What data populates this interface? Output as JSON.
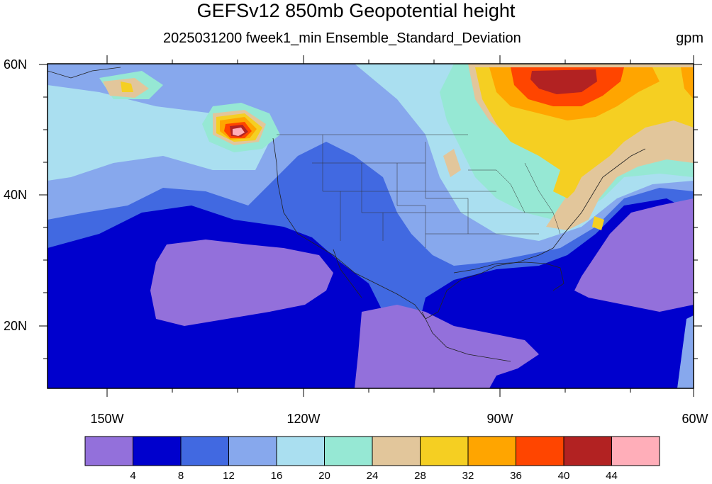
{
  "map": {
    "title": "GEFSv12 850mb Geopotential height",
    "subtitle": "2025031200 fweek1_min Ensemble_Standard_Deviation",
    "units": "gpm",
    "lat_labels": [
      "60N",
      "40N",
      "20N"
    ],
    "lon_labels": [
      "150W",
      "120W",
      "90W",
      "60W"
    ],
    "extent": {
      "lon_min": -159,
      "lon_max": -60,
      "lat_min": 10,
      "lat_max": 60
    }
  },
  "colorbar": {
    "labels": [
      "4",
      "8",
      "12",
      "16",
      "20",
      "24",
      "28",
      "32",
      "36",
      "40",
      "44"
    ],
    "colors": [
      "#9370db",
      "#0000cd",
      "#4169e1",
      "#87a8ed",
      "#aadff0",
      "#96e8d4",
      "#e2c69b",
      "#f5cf22",
      "#ffa500",
      "#ff4500",
      "#b22222",
      "#ffaeb9"
    ]
  }
}
